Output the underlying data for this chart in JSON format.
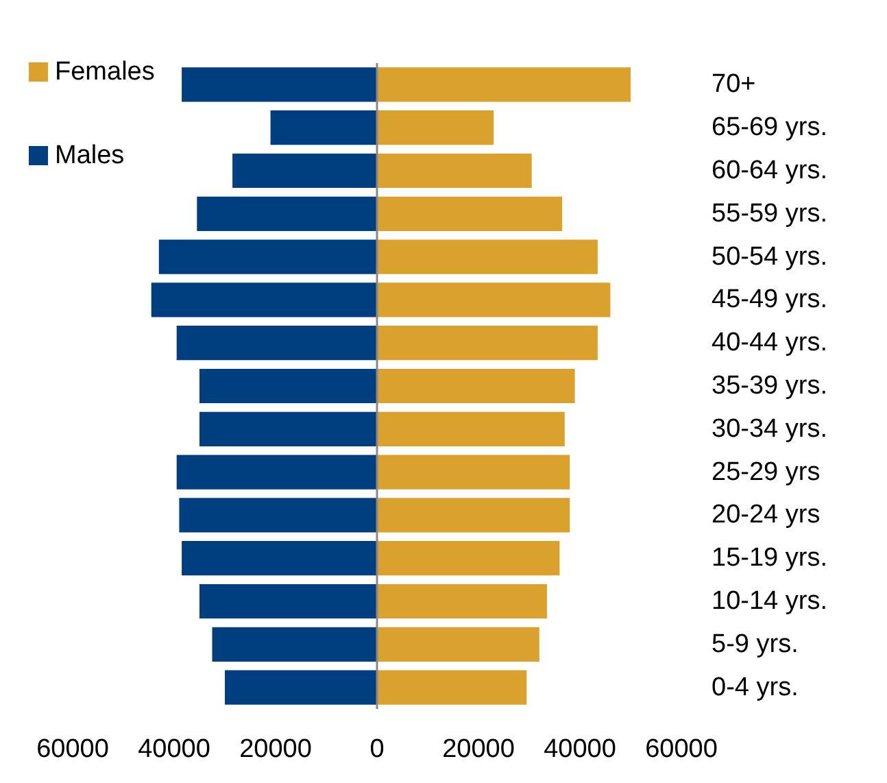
{
  "chart_data": {
    "type": "bar",
    "orientation": "horizontal",
    "categories": [
      "70+",
      "65-69 yrs.",
      "60-64 yrs.",
      "55-59 yrs.",
      "50-54 yrs.",
      "45-49 yrs.",
      "40-44 yrs.",
      "35-39 yrs.",
      "30-34 yrs.",
      "25-29 yrs",
      "20-24 yrs",
      "15-19 yrs.",
      "10-14 yrs.",
      "5-9 yrs.",
      "0-4 yrs."
    ],
    "series": [
      {
        "name": "Females",
        "color": "#daa12c",
        "values": [
          50000,
          23000,
          30500,
          36500,
          43500,
          46000,
          43500,
          39000,
          37000,
          38000,
          38000,
          36000,
          33500,
          32000,
          29500
        ]
      },
      {
        "name": "Males",
        "color": "#003f7f",
        "values": [
          -38500,
          -21000,
          -28500,
          -35500,
          -43000,
          -44500,
          -39500,
          -35000,
          -35000,
          -39500,
          -39000,
          -38500,
          -35000,
          -32500,
          -30000
        ]
      }
    ],
    "xlim": [
      -60000,
      60000
    ],
    "xticks": [
      {
        "value": -60000,
        "label": "60000"
      },
      {
        "value": -40000,
        "label": "40000"
      },
      {
        "value": -20000,
        "label": "20000"
      },
      0,
      20000,
      40000,
      60000
    ],
    "stacked": true,
    "grid": false,
    "ref_lines": [
      {
        "axis": "x",
        "value": 0,
        "color": "#888888"
      }
    ],
    "legend": "top left"
  }
}
